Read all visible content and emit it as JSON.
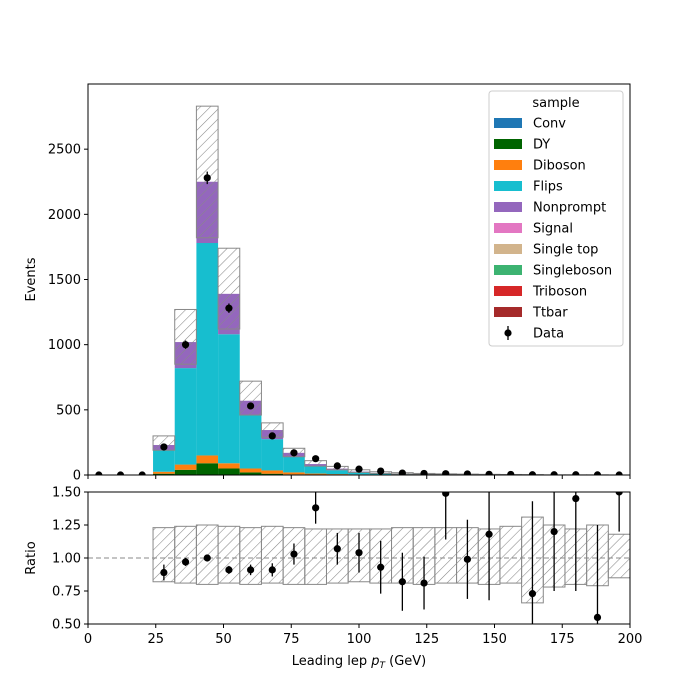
{
  "chart_data": [
    {
      "type": "bar",
      "subtype": "stacked-step-histogram",
      "title": "",
      "xlabel": "",
      "ylabel": "Events",
      "xlim": [
        0,
        200
      ],
      "ylim": [
        0,
        3000
      ],
      "yticks": [
        0,
        500,
        1000,
        1500,
        2000,
        2500
      ],
      "bin_edges": [
        0,
        8,
        16,
        24,
        32,
        40,
        48,
        56,
        64,
        72,
        80,
        88,
        96,
        104,
        112,
        120,
        128,
        136,
        144,
        152,
        160,
        168,
        176,
        184,
        192,
        200
      ],
      "series": [
        {
          "name": "Conv",
          "color": "#1f77b4",
          "values": [
            0,
            0,
            0,
            0,
            0,
            0,
            0,
            0,
            0,
            0,
            0,
            0,
            0,
            0,
            0,
            0,
            0,
            0,
            0,
            0,
            0,
            0,
            0,
            0,
            0
          ]
        },
        {
          "name": "DY",
          "color": "#006400",
          "values": [
            0,
            0,
            0,
            10,
            40,
            90,
            50,
            20,
            10,
            5,
            3,
            2,
            1,
            1,
            1,
            0,
            0,
            0,
            0,
            0,
            0,
            0,
            0,
            0,
            0
          ]
        },
        {
          "name": "Diboson",
          "color": "#ff7f0e",
          "values": [
            0,
            0,
            0,
            15,
            40,
            60,
            40,
            30,
            25,
            15,
            8,
            5,
            4,
            3,
            2,
            2,
            1,
            1,
            1,
            0,
            0,
            0,
            0,
            0,
            0
          ]
        },
        {
          "name": "Flips",
          "color": "#17becf",
          "values": [
            0,
            0,
            0,
            165,
            740,
            1630,
            990,
            410,
            240,
            120,
            55,
            30,
            15,
            8,
            4,
            3,
            2,
            2,
            1,
            1,
            1,
            0,
            0,
            0,
            0
          ]
        },
        {
          "name": "Nonprompt",
          "color": "#9467bd",
          "values": [
            0,
            0,
            0,
            40,
            200,
            470,
            310,
            110,
            70,
            30,
            18,
            12,
            6,
            4,
            3,
            2,
            2,
            1,
            1,
            1,
            0,
            0,
            0,
            0,
            0
          ]
        },
        {
          "name": "Signal",
          "color": "#e377c2",
          "values": [
            0,
            0,
            0,
            0,
            0,
            0,
            0,
            0,
            0,
            0,
            0,
            0,
            0,
            0,
            0,
            0,
            0,
            0,
            0,
            0,
            0,
            0,
            0,
            0,
            0
          ]
        },
        {
          "name": "Single top",
          "color": "#d2b48c",
          "values": [
            0,
            0,
            0,
            0,
            0,
            0,
            0,
            0,
            0,
            0,
            0,
            0,
            0,
            0,
            0,
            0,
            0,
            0,
            0,
            0,
            0,
            0,
            0,
            0,
            0
          ]
        },
        {
          "name": "Singleboson",
          "color": "#3cb371",
          "values": [
            0,
            0,
            0,
            0,
            0,
            0,
            0,
            0,
            0,
            0,
            0,
            0,
            0,
            0,
            0,
            0,
            0,
            0,
            0,
            0,
            0,
            0,
            0,
            0,
            0
          ]
        },
        {
          "name": "Triboson",
          "color": "#d62728",
          "values": [
            0,
            0,
            0,
            0,
            0,
            0,
            0,
            0,
            0,
            0,
            0,
            0,
            0,
            0,
            0,
            0,
            0,
            0,
            0,
            0,
            0,
            0,
            0,
            0,
            0
          ]
        },
        {
          "name": "Ttbar",
          "color": "#a52a2a",
          "values": [
            0,
            0,
            0,
            0,
            0,
            0,
            0,
            0,
            0,
            0,
            0,
            0,
            0,
            0,
            0,
            0,
            0,
            0,
            0,
            0,
            0,
            0,
            0,
            0,
            0
          ]
        }
      ],
      "uncertainty_band": {
        "lower": [
          0,
          0,
          0,
          190,
          850,
          1820,
          1120,
          460,
          290,
          140,
          68,
          40,
          20,
          12,
          8,
          5,
          4,
          3,
          2,
          2,
          1,
          0,
          0,
          0,
          0
        ],
        "upper": [
          0,
          0,
          0,
          300,
          1270,
          2830,
          1740,
          720,
          400,
          205,
          110,
          66,
          40,
          25,
          18,
          12,
          9,
          7,
          5,
          4,
          3,
          1,
          1,
          1,
          0
        ]
      },
      "data": {
        "name": "Data",
        "x": [
          4,
          12,
          20,
          28,
          36,
          44,
          52,
          60,
          68,
          76,
          84,
          92,
          100,
          108,
          116,
          124,
          132,
          140,
          148,
          156,
          164,
          172,
          180,
          188,
          196
        ],
        "y": [
          0,
          0,
          0,
          215,
          1000,
          2280,
          1280,
          530,
          300,
          170,
          125,
          70,
          45,
          30,
          15,
          12,
          10,
          8,
          5,
          4,
          2,
          2,
          2,
          1,
          0
        ],
        "yerr": [
          0,
          0,
          0,
          15,
          32,
          48,
          36,
          23,
          17,
          13,
          11,
          8,
          7,
          5,
          4,
          3,
          3,
          3,
          2,
          2,
          1,
          1,
          1,
          1,
          0
        ]
      },
      "legend": {
        "title": "sample",
        "placement": "upper-right"
      }
    },
    {
      "type": "scatter",
      "subtype": "ratio-panel",
      "xlabel": "Leading lep p_T (GeV)",
      "ylabel": "Ratio",
      "xlim": [
        0,
        200
      ],
      "ylim": [
        0.5,
        1.5
      ],
      "xticks": [
        0,
        25,
        50,
        75,
        100,
        125,
        150,
        175,
        200
      ],
      "yticks": [
        "0.50",
        "0.75",
        "1.00",
        "1.25",
        "1.50"
      ],
      "reference_line": 1.0,
      "bin_edges": [
        0,
        8,
        16,
        24,
        32,
        40,
        48,
        56,
        64,
        72,
        80,
        88,
        96,
        104,
        112,
        120,
        128,
        136,
        144,
        152,
        160,
        168,
        176,
        184,
        192,
        200
      ],
      "band_lower": [
        1,
        1,
        1,
        0.82,
        0.81,
        0.8,
        0.81,
        0.8,
        0.81,
        0.8,
        0.8,
        0.81,
        0.82,
        0.81,
        0.81,
        0.8,
        0.81,
        0.81,
        0.8,
        0.81,
        0.66,
        0.78,
        0.8,
        0.79,
        0.85
      ],
      "band_upper": [
        1,
        1,
        1,
        1.23,
        1.24,
        1.25,
        1.24,
        1.23,
        1.24,
        1.23,
        1.22,
        1.22,
        1.22,
        1.22,
        1.23,
        1.23,
        1.23,
        1.23,
        1.22,
        1.24,
        1.31,
        1.25,
        1.22,
        1.25,
        1.18
      ],
      "points": {
        "x": [
          28,
          36,
          44,
          52,
          60,
          68,
          76,
          84,
          92,
          100,
          108,
          116,
          124,
          132,
          140,
          148,
          164,
          172,
          180,
          188,
          196
        ],
        "y": [
          0.89,
          0.97,
          1.0,
          0.91,
          0.91,
          0.91,
          1.03,
          1.38,
          1.07,
          1.04,
          0.93,
          0.82,
          0.81,
          1.49,
          0.99,
          1.18,
          0.73,
          1.2,
          1.45,
          0.55,
          1.5
        ],
        "yerr": [
          0.06,
          0.03,
          0.02,
          0.03,
          0.04,
          0.05,
          0.08,
          0.12,
          0.12,
          0.15,
          0.2,
          0.22,
          0.2,
          0.35,
          0.3,
          0.5,
          0.7,
          0.45,
          0.7,
          0.7,
          0.3
        ]
      }
    }
  ]
}
